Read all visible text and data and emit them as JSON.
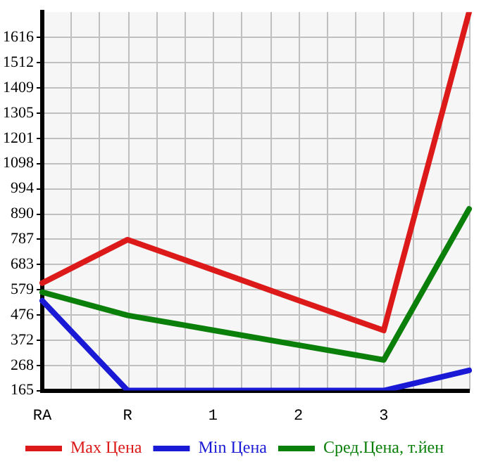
{
  "chart_data": {
    "type": "line",
    "categories": [
      "RA",
      "R",
      "1",
      "2",
      "3",
      null
    ],
    "series": [
      {
        "name": "Max Цена",
        "color": "#dd1a1a",
        "values": [
          607,
          785,
          661,
          536,
          412,
          1720
        ]
      },
      {
        "name": "Min Цена",
        "color": "#1a1ad6",
        "values": [
          534,
          165,
          165,
          165,
          165,
          248
        ]
      },
      {
        "name": "Сред.Цена, т.йен",
        "color": "#0a7f0a",
        "values": [
          569,
          474,
          413,
          352,
          291,
          911
        ]
      }
    ],
    "ylim": [
      165,
      1720
    ],
    "yticks": [
      165,
      268,
      372,
      476,
      579,
      683,
      787,
      890,
      994,
      1098,
      1201,
      1305,
      1409,
      1512,
      1616
    ],
    "grid": true,
    "legend": "bottom",
    "marker": "none",
    "line_style": "solid"
  }
}
